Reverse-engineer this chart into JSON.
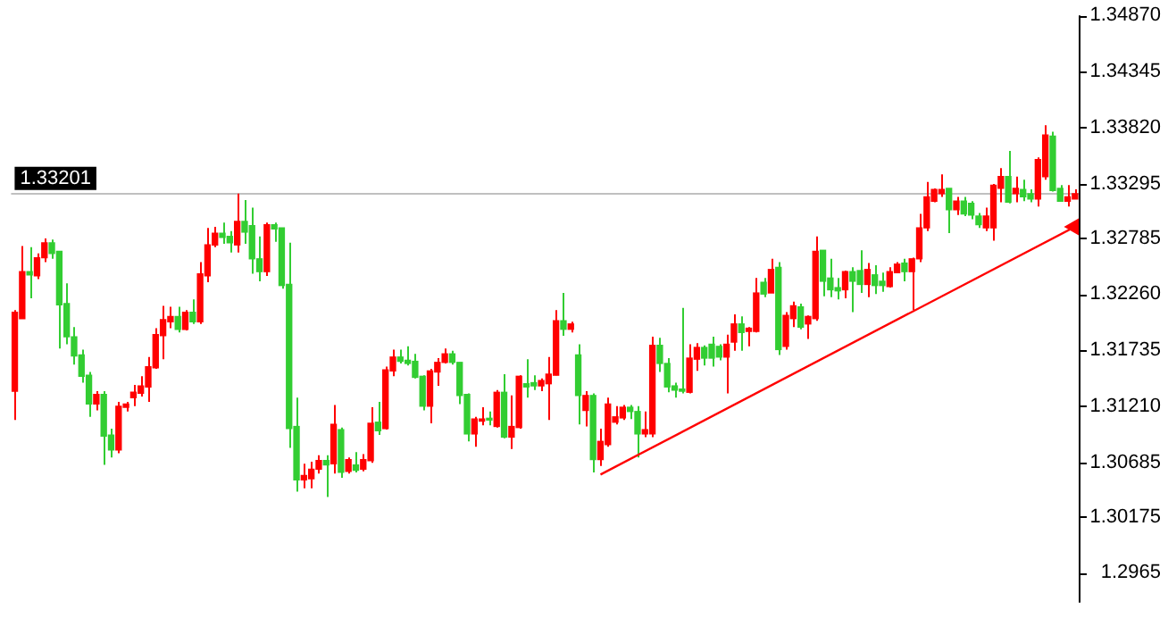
{
  "chart_data": {
    "type": "candlestick",
    "categories": [
      null,
      null,
      null,
      null,
      null,
      null,
      null,
      null,
      null,
      null,
      null,
      null,
      null,
      null,
      null,
      null,
      null,
      null,
      null,
      null,
      null,
      null,
      null,
      null,
      null,
      null,
      null,
      null,
      null,
      null,
      null,
      null,
      null,
      null,
      null,
      null,
      null,
      null,
      null,
      null,
      null,
      null,
      null,
      null,
      null,
      null,
      null,
      null,
      null,
      null,
      null,
      null,
      null,
      null,
      null,
      null,
      null,
      null,
      null,
      null,
      null,
      null,
      null,
      null,
      null,
      null,
      null,
      null,
      null,
      null,
      null,
      null,
      null,
      null,
      null,
      null,
      null,
      null,
      null,
      null,
      null,
      null,
      null,
      null,
      null,
      null,
      null,
      null,
      null,
      null,
      null,
      null,
      null,
      null,
      null,
      null,
      null,
      null,
      null,
      null,
      null,
      null,
      null,
      null,
      null,
      null,
      null,
      null,
      null,
      null,
      null,
      null,
      null,
      null,
      null,
      null,
      null,
      null,
      null,
      null,
      null,
      null,
      null,
      null,
      null,
      null,
      null,
      null,
      null,
      null,
      null,
      null,
      null,
      null,
      null,
      null,
      null,
      null,
      null,
      null,
      null,
      null,
      null,
      null
    ],
    "ohlc": [
      [
        1.3135,
        1.3211,
        1.3108,
        1.3209
      ],
      [
        1.3203,
        1.3271,
        1.3203,
        1.3247
      ],
      [
        1.3247,
        1.327,
        1.3222,
        1.3244
      ],
      [
        1.3243,
        1.3264,
        1.324,
        1.326
      ],
      [
        1.326,
        1.3278,
        1.3256,
        1.3274
      ],
      [
        1.3274,
        1.3277,
        1.3259,
        1.3264
      ],
      [
        1.3266,
        1.3266,
        1.3175,
        1.3216
      ],
      [
        1.3217,
        1.3236,
        1.3179,
        1.3186
      ],
      [
        1.3186,
        1.3195,
        1.316,
        1.3168
      ],
      [
        1.3169,
        1.3174,
        1.3143,
        1.3149
      ],
      [
        1.315,
        1.3153,
        1.3111,
        1.3123
      ],
      [
        1.3123,
        1.3135,
        1.3117,
        1.3132
      ],
      [
        1.3132,
        1.3135,
        1.3066,
        1.3093
      ],
      [
        1.3094,
        1.31,
        1.3073,
        1.308
      ],
      [
        1.308,
        1.3125,
        1.3077,
        1.3121
      ],
      [
        1.312,
        1.3125,
        1.3116,
        1.3123
      ],
      [
        1.3129,
        1.3141,
        1.3121,
        1.3134
      ],
      [
        1.3133,
        1.3149,
        1.313,
        1.314
      ],
      [
        1.3139,
        1.3167,
        1.3125,
        1.3158
      ],
      [
        1.3157,
        1.3194,
        1.3156,
        1.3188
      ],
      [
        1.3187,
        1.3215,
        1.3165,
        1.3202
      ],
      [
        1.32,
        1.3214,
        1.3194,
        1.3205
      ],
      [
        1.3205,
        1.3214,
        1.319,
        1.3193
      ],
      [
        1.3193,
        1.3211,
        1.3192,
        1.3209
      ],
      [
        1.3209,
        1.3221,
        1.3198,
        1.32
      ],
      [
        1.32,
        1.3256,
        1.3198,
        1.3245
      ],
      [
        1.3243,
        1.3288,
        1.3237,
        1.3272
      ],
      [
        1.3272,
        1.3289,
        1.327,
        1.3283
      ],
      [
        1.3283,
        1.3293,
        1.3273,
        1.3279
      ],
      [
        1.328,
        1.3285,
        1.3265,
        1.3274
      ],
      [
        1.3272,
        1.332,
        1.3265,
        1.3294
      ],
      [
        1.3294,
        1.3314,
        1.3273,
        1.3284
      ],
      [
        1.329,
        1.3307,
        1.3245,
        1.3259
      ],
      [
        1.3259,
        1.328,
        1.3238,
        1.3247
      ],
      [
        1.3247,
        1.3293,
        1.3243,
        1.3291
      ],
      [
        1.3291,
        1.3293,
        1.3275,
        1.3287
      ],
      [
        1.3288,
        1.3288,
        1.3231,
        1.3234
      ],
      [
        1.3235,
        1.3274,
        1.3082,
        1.31
      ],
      [
        1.3102,
        1.3129,
        1.3041,
        1.3052
      ],
      [
        1.3052,
        1.3067,
        1.3044,
        1.3056
      ],
      [
        1.3053,
        1.3069,
        1.3044,
        1.3062
      ],
      [
        1.3062,
        1.3075,
        1.3058,
        1.307
      ],
      [
        1.307,
        1.3075,
        1.3036,
        1.3066
      ],
      [
        1.3067,
        1.3122,
        1.3058,
        1.3104
      ],
      [
        1.3099,
        1.3101,
        1.3054,
        1.3059
      ],
      [
        1.306,
        1.3073,
        1.3058,
        1.3071
      ],
      [
        1.3066,
        1.3078,
        1.3059,
        1.3061
      ],
      [
        1.3062,
        1.3076,
        1.306,
        1.3071
      ],
      [
        1.307,
        1.312,
        1.3068,
        1.3105
      ],
      [
        1.3106,
        1.3125,
        1.3094,
        1.3098
      ],
      [
        1.31,
        1.3158,
        1.3099,
        1.3155
      ],
      [
        1.3154,
        1.3174,
        1.3149,
        1.3167
      ],
      [
        1.3167,
        1.3174,
        1.3161,
        1.3163
      ],
      [
        1.3164,
        1.3177,
        1.3159,
        1.3161
      ],
      [
        1.3163,
        1.317,
        1.3147,
        1.3148
      ],
      [
        1.3149,
        1.315,
        1.3117,
        1.3121
      ],
      [
        1.3121,
        1.3156,
        1.3105,
        1.3154
      ],
      [
        1.3153,
        1.3166,
        1.314,
        1.3162
      ],
      [
        1.3162,
        1.3175,
        1.3161,
        1.317
      ],
      [
        1.317,
        1.3173,
        1.316,
        1.3162
      ],
      [
        1.3162,
        1.3162,
        1.3123,
        1.3131
      ],
      [
        1.3132,
        1.3133,
        1.3088,
        1.3095
      ],
      [
        1.3095,
        1.3111,
        1.3083,
        1.3109
      ],
      [
        1.3107,
        1.312,
        1.3103,
        1.3109
      ],
      [
        1.3109,
        1.3116,
        1.3103,
        1.3108
      ],
      [
        1.3102,
        1.3136,
        1.3101,
        1.3134
      ],
      [
        1.3134,
        1.3151,
        1.3091,
        1.3092
      ],
      [
        1.3092,
        1.3131,
        1.3081,
        1.3102
      ],
      [
        1.3101,
        1.315,
        1.31,
        1.3149
      ],
      [
        1.3142,
        1.3165,
        1.3129,
        1.3139
      ],
      [
        1.3143,
        1.315,
        1.3136,
        1.314
      ],
      [
        1.314,
        1.3147,
        1.3135,
        1.3145
      ],
      [
        1.3142,
        1.3167,
        1.3108,
        1.3151
      ],
      [
        1.315,
        1.3211,
        1.315,
        1.3201
      ],
      [
        1.3201,
        1.3227,
        1.3187,
        1.3193
      ],
      [
        1.3193,
        1.32,
        1.319,
        1.3198
      ],
      [
        1.3169,
        1.3179,
        1.3104,
        1.3131
      ],
      [
        1.3117,
        1.3135,
        1.3102,
        1.3131
      ],
      [
        1.3131,
        1.3133,
        1.3059,
        1.3071
      ],
      [
        1.3071,
        1.31,
        1.3065,
        1.3088
      ],
      [
        1.3085,
        1.3129,
        1.3083,
        1.3123
      ],
      [
        1.3106,
        1.3121,
        1.3104,
        1.3111
      ],
      [
        1.311,
        1.3122,
        1.3108,
        1.312
      ],
      [
        1.312,
        1.3122,
        1.3109,
        1.3116
      ],
      [
        1.3116,
        1.3121,
        1.3073,
        1.3095
      ],
      [
        1.3095,
        1.3116,
        1.3092,
        1.3099
      ],
      [
        1.3095,
        1.3186,
        1.3092,
        1.3178
      ],
      [
        1.3178,
        1.3185,
        1.3153,
        1.3161
      ],
      [
        1.3161,
        1.3166,
        1.3134,
        1.3139
      ],
      [
        1.314,
        1.3143,
        1.3129,
        1.3136
      ],
      [
        1.3137,
        1.3213,
        1.3133,
        1.3135
      ],
      [
        1.3134,
        1.3179,
        1.3133,
        1.3166
      ],
      [
        1.3165,
        1.318,
        1.3154,
        1.3176
      ],
      [
        1.3176,
        1.3178,
        1.3159,
        1.3166
      ],
      [
        1.3179,
        1.3186,
        1.3158,
        1.3166
      ],
      [
        1.3177,
        1.3179,
        1.3164,
        1.3167
      ],
      [
        1.3167,
        1.3188,
        1.3133,
        1.3179
      ],
      [
        1.3181,
        1.3207,
        1.3173,
        1.3198
      ],
      [
        1.3198,
        1.3205,
        1.3173,
        1.319
      ],
      [
        1.3191,
        1.3195,
        1.3177,
        1.3194
      ],
      [
        1.3191,
        1.3241,
        1.319,
        1.3227
      ],
      [
        1.3237,
        1.3241,
        1.3223,
        1.3226
      ],
      [
        1.3227,
        1.3259,
        1.3227,
        1.3249
      ],
      [
        1.3251,
        1.3256,
        1.3169,
        1.3174
      ],
      [
        1.3177,
        1.3209,
        1.3174,
        1.3206
      ],
      [
        1.3203,
        1.3219,
        1.3195,
        1.3215
      ],
      [
        1.3214,
        1.3217,
        1.3193,
        1.3195
      ],
      [
        1.3198,
        1.3206,
        1.3184,
        1.3205
      ],
      [
        1.3203,
        1.328,
        1.3201,
        1.3266
      ],
      [
        1.3267,
        1.3267,
        1.3224,
        1.3238
      ],
      [
        1.3241,
        1.3259,
        1.3223,
        1.323
      ],
      [
        1.3232,
        1.3241,
        1.3221,
        1.3229
      ],
      [
        1.323,
        1.3248,
        1.3222,
        1.3247
      ],
      [
        1.3247,
        1.3251,
        1.3209,
        1.3238
      ],
      [
        1.3248,
        1.3267,
        1.3227,
        1.3235
      ],
      [
        1.3235,
        1.3255,
        1.3223,
        1.3249
      ],
      [
        1.3244,
        1.3253,
        1.3226,
        1.3234
      ],
      [
        1.3238,
        1.3246,
        1.3228,
        1.3234
      ],
      [
        1.3233,
        1.3251,
        1.3232,
        1.3247
      ],
      [
        1.3246,
        1.3256,
        1.3246,
        1.3254
      ],
      [
        1.3255,
        1.3259,
        1.3238,
        1.3247
      ],
      [
        1.3247,
        1.326,
        1.3211,
        1.3259
      ],
      [
        1.3259,
        1.3301,
        1.3256,
        1.3288
      ],
      [
        1.3288,
        1.3331,
        1.3285,
        1.3317
      ],
      [
        1.3313,
        1.3325,
        1.3312,
        1.3324
      ],
      [
        1.332,
        1.3338,
        1.3317,
        1.3324
      ],
      [
        1.3325,
        1.3325,
        1.3283,
        1.3305
      ],
      [
        1.3305,
        1.3317,
        1.33,
        1.3313
      ],
      [
        1.3313,
        1.3317,
        1.3299,
        1.3301
      ],
      [
        1.3311,
        1.3313,
        1.3296,
        1.33
      ],
      [
        1.3299,
        1.3302,
        1.3288,
        1.3291
      ],
      [
        1.3288,
        1.3307,
        1.3285,
        1.3299
      ],
      [
        1.3288,
        1.3329,
        1.3276,
        1.3328
      ],
      [
        1.3325,
        1.3344,
        1.3312,
        1.3336
      ],
      [
        1.3336,
        1.336,
        1.3311,
        1.3312
      ],
      [
        1.332,
        1.3336,
        1.3312,
        1.3325
      ],
      [
        1.3324,
        1.3333,
        1.3313,
        1.3317
      ],
      [
        1.332,
        1.3324,
        1.3312,
        1.3315
      ],
      [
        1.3315,
        1.3354,
        1.3308,
        1.3352
      ],
      [
        1.3336,
        1.3384,
        1.3333,
        1.3375
      ],
      [
        1.3374,
        1.3378,
        1.3322,
        1.3323
      ],
      [
        1.3325,
        1.3328,
        1.3313,
        1.3313
      ],
      [
        1.3313,
        1.3328,
        1.3308,
        1.3317
      ],
      [
        1.3315,
        1.3324,
        1.3315,
        1.332
      ]
    ],
    "colors": [
      "#ff0000",
      "#ff0000",
      "#32cd32",
      "#ff0000",
      "#ff0000",
      "#32cd32",
      "#32cd32",
      "#32cd32",
      "#32cd32",
      "#32cd32",
      "#32cd32",
      "#ff0000",
      "#32cd32",
      "#32cd32",
      "#ff0000",
      "#ff0000",
      "#ff0000",
      "#ff0000",
      "#ff0000",
      "#ff0000",
      "#ff0000",
      "#ff0000",
      "#32cd32",
      "#ff0000",
      "#32cd32",
      "#ff0000",
      "#ff0000",
      "#ff0000",
      "#32cd32",
      "#32cd32",
      "#ff0000",
      "#32cd32",
      "#32cd32",
      "#32cd32",
      "#ff0000",
      "#32cd32",
      "#32cd32",
      "#32cd32",
      "#32cd32",
      "#ff0000",
      "#ff0000",
      "#ff0000",
      "#32cd32",
      "#ff0000",
      "#32cd32",
      "#ff0000",
      "#32cd32",
      "#ff0000",
      "#ff0000",
      "#32cd32",
      "#ff0000",
      "#ff0000",
      "#32cd32",
      "#32cd32",
      "#32cd32",
      "#32cd32",
      "#ff0000",
      "#ff0000",
      "#ff0000",
      "#32cd32",
      "#32cd32",
      "#32cd32",
      "#ff0000",
      "#ff0000",
      "#32cd32",
      "#ff0000",
      "#32cd32",
      "#ff0000",
      "#ff0000",
      "#32cd32",
      "#32cd32",
      "#ff0000",
      "#ff0000",
      "#ff0000",
      "#32cd32",
      "#ff0000",
      "#32cd32",
      "#ff0000",
      "#32cd32",
      "#ff0000",
      "#ff0000",
      "#ff0000",
      "#ff0000",
      "#32cd32",
      "#32cd32",
      "#ff0000",
      "#ff0000",
      "#32cd32",
      "#32cd32",
      "#32cd32",
      "#32cd32",
      "#ff0000",
      "#ff0000",
      "#32cd32",
      "#32cd32",
      "#32cd32",
      "#ff0000",
      "#ff0000",
      "#32cd32",
      "#ff0000",
      "#ff0000",
      "#32cd32",
      "#ff0000",
      "#32cd32",
      "#ff0000",
      "#ff0000",
      "#32cd32",
      "#ff0000",
      "#ff0000",
      "#32cd32",
      "#32cd32",
      "#32cd32",
      "#ff0000",
      "#32cd32",
      "#32cd32",
      "#ff0000",
      "#32cd32",
      "#32cd32",
      "#ff0000",
      "#ff0000",
      "#32cd32",
      "#ff0000",
      "#ff0000",
      "#ff0000",
      "#ff0000",
      "#ff0000",
      "#32cd32",
      "#ff0000",
      "#32cd32",
      "#32cd32",
      "#32cd32",
      "#ff0000",
      "#ff0000",
      "#ff0000",
      "#32cd32",
      "#ff0000",
      "#32cd32",
      "#32cd32",
      "#ff0000",
      "#ff0000",
      "#32cd32",
      "#32cd32",
      "#ff0000",
      "#ff0000"
    ],
    "series": [
      {
        "type": "line",
        "color": "#ff0000",
        "values": [
          null,
          null,
          null,
          null,
          null,
          null,
          null,
          null,
          null,
          null,
          null,
          null,
          null,
          null,
          null,
          null,
          null,
          null,
          null,
          null,
          null,
          null,
          null,
          null,
          null,
          null,
          null,
          null,
          null,
          null,
          null,
          null,
          null,
          null,
          null,
          null,
          null,
          null,
          null,
          null,
          null,
          null,
          null,
          null,
          null,
          null,
          null,
          null,
          null,
          null,
          null,
          null,
          null,
          null,
          null,
          null,
          null,
          null,
          null,
          null,
          null,
          null,
          null,
          null,
          null,
          null,
          null,
          null,
          null,
          null,
          null,
          null,
          null,
          null,
          null,
          null,
          null,
          null,
          null,
          1.3057,
          null,
          null,
          null,
          null,
          null,
          null,
          null,
          null,
          null,
          null,
          null,
          null,
          null,
          null,
          null,
          null,
          null,
          null,
          null,
          null,
          null,
          null,
          null,
          null,
          null,
          null,
          null,
          null,
          null,
          null,
          null,
          null,
          null,
          null,
          null,
          null,
          null,
          null,
          null,
          null,
          null,
          null,
          null,
          null,
          null,
          null,
          null,
          null,
          null,
          null,
          null,
          null,
          null,
          null,
          null,
          null,
          null,
          null,
          null,
          null,
          null,
          null,
          null,
          1.3289
        ]
      }
    ],
    "ylim": [
      1.2937,
      1.3487
    ],
    "yticks": [
      1.2965,
      1.30175,
      1.30685,
      {
        "value": 1.3121,
        "label": "1.31210"
      },
      1.31735,
      {
        "value": 1.3226,
        "label": "1.32260"
      },
      1.32785,
      1.33295,
      {
        "value": 1.3382,
        "label": "1.33820"
      },
      1.34345,
      {
        "value": 1.3487,
        "label": "1.34870"
      }
    ],
    "ref_lines": [
      {
        "axis": "y",
        "value": 1.33201,
        "label": "1.33201",
        "color": "#c0c0c0"
      }
    ],
    "tick_labels": "y",
    "grid": false,
    "legend": false
  }
}
